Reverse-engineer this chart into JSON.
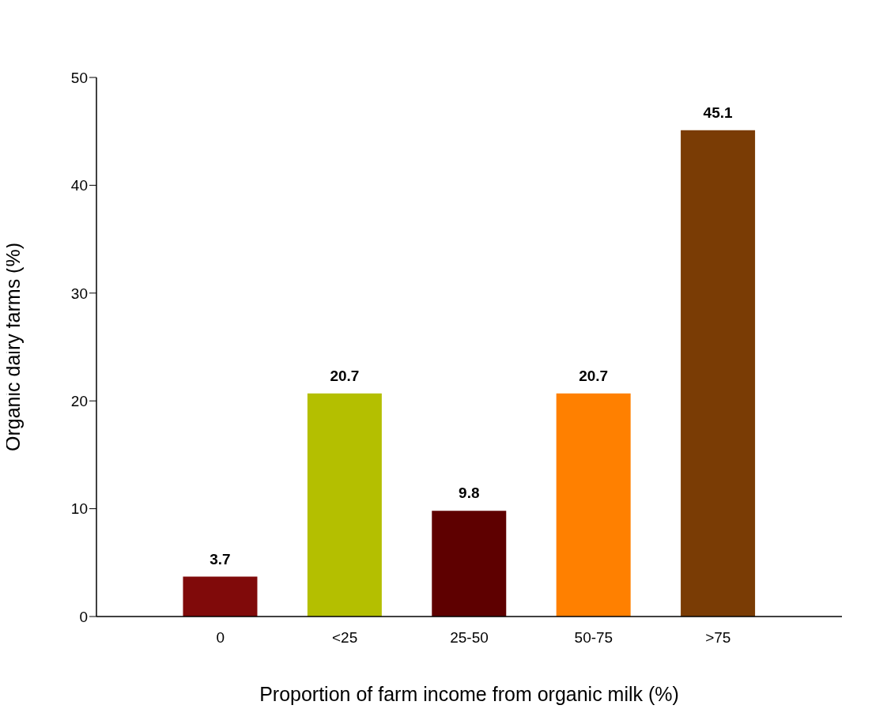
{
  "chart_data": {
    "type": "bar",
    "xlabel": "Proportion of farm income from organic milk (%)",
    "ylabel": "Organic dairy farms (%)",
    "categories": [
      "0",
      "<25",
      "25-50",
      "50-75",
      ">75"
    ],
    "values": [
      3.7,
      20.7,
      9.8,
      20.7,
      45.1
    ],
    "colors": [
      "#800a0a",
      "#b4bf00",
      "#5e0000",
      "#ff8000",
      "#7a3c05"
    ],
    "ylim": [
      0,
      50
    ],
    "yticks": [
      0,
      10,
      20,
      30,
      40,
      50
    ],
    "grid": false,
    "data_labels": true
  }
}
